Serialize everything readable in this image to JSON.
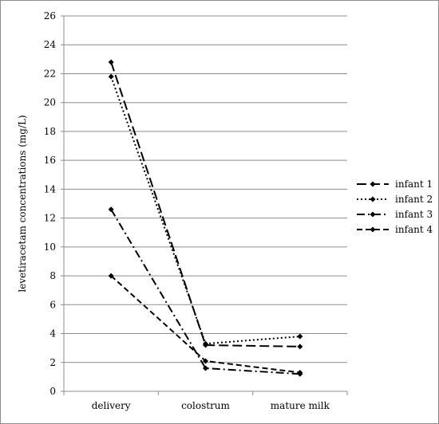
{
  "chart_data": {
    "type": "line",
    "title": "",
    "xlabel": "",
    "ylabel": "levetiracetam concentrations (mg/L)",
    "categories": [
      "delivery",
      "colostrum",
      "mature milk"
    ],
    "ylim": [
      0,
      26
    ],
    "yticks": [
      0,
      2,
      4,
      6,
      8,
      10,
      12,
      14,
      16,
      18,
      20,
      22,
      24,
      26
    ],
    "grid": "horizontal",
    "legend_position": "right",
    "series": [
      {
        "name": "infant 1",
        "values": [
          22.8,
          3.2,
          3.1
        ],
        "dash": "long-dash"
      },
      {
        "name": "infant 2",
        "values": [
          21.8,
          3.3,
          3.8
        ],
        "dash": "dotted"
      },
      {
        "name": "infant 3",
        "values": [
          12.6,
          1.6,
          1.2
        ],
        "dash": "dash-dot"
      },
      {
        "name": "infant 4",
        "values": [
          8.0,
          2.1,
          1.3
        ],
        "dash": "dashed"
      }
    ],
    "colors": {
      "line": "#000000",
      "grid": "#8c8c8c",
      "frame": "#8c8c8c"
    }
  }
}
